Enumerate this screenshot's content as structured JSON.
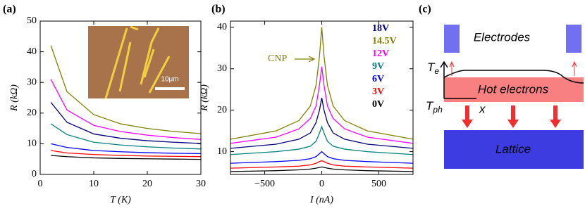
{
  "chart_data": [
    {
      "type": "line",
      "panel_label": "(a)",
      "xlabel": "T (K)",
      "ylabel": "R (kΩ)",
      "xlim": [
        0,
        30
      ],
      "ylim": [
        0,
        50
      ],
      "xticks": [
        0,
        10,
        20,
        30
      ],
      "yticks": [
        0,
        10,
        20,
        30,
        40,
        50
      ],
      "inset_scale_label": "10μm",
      "x": [
        2,
        5,
        10,
        15,
        20,
        25,
        30
      ],
      "series": [
        {
          "color": "#808000",
          "values": [
            42,
            27,
            19.5,
            16.5,
            15,
            14,
            13.3
          ]
        },
        {
          "color": "#ff00ff",
          "values": [
            31,
            21,
            16,
            14,
            12.8,
            12,
            11.4
          ]
        },
        {
          "color": "#00007f",
          "values": [
            23.5,
            17,
            13.2,
            11.8,
            11,
            10.5,
            10.1
          ]
        },
        {
          "color": "#008080",
          "values": [
            16.5,
            13,
            10.5,
            9.6,
            9,
            8.6,
            8.3
          ]
        },
        {
          "color": "#0000ff",
          "values": [
            10,
            8.8,
            7.8,
            7.4,
            7.1,
            6.9,
            6.8
          ]
        },
        {
          "color": "#ff0000",
          "values": [
            7.8,
            7,
            6.5,
            6.2,
            6,
            5.9,
            5.8
          ]
        },
        {
          "color": "#000000",
          "values": [
            6.2,
            5.8,
            5.4,
            5.2,
            5.1,
            5,
            4.9
          ]
        }
      ]
    },
    {
      "type": "line",
      "panel_label": "(b)",
      "xlabel": "I (nA)",
      "ylabel": "R (kΩ)",
      "xlim": [
        -800,
        800
      ],
      "ylim": [
        4.5,
        41.5
      ],
      "xticks": [
        {
          "value": -500,
          "label": "−500"
        },
        0,
        500
      ],
      "yticks": [
        10,
        20,
        30,
        40
      ],
      "annotation": "CNP",
      "x": [
        -800,
        -400,
        -200,
        -100,
        -50,
        -20,
        0,
        20,
        50,
        100,
        200,
        400,
        800
      ],
      "series": [
        {
          "name": "18V",
          "color": "#00007f",
          "values": [
            10.8,
            11.8,
            13,
            14.5,
            17,
            20,
            23,
            20,
            17,
            14.5,
            13,
            11.8,
            10.8
          ]
        },
        {
          "name": "14.5V",
          "color": "#808000",
          "values": [
            13,
            15,
            17.5,
            21,
            26,
            33,
            40,
            33,
            26,
            21,
            17.5,
            15,
            13
          ]
        },
        {
          "name": "12V",
          "color": "#ff00ff",
          "values": [
            12,
            13.5,
            15.5,
            18,
            21,
            26,
            30.5,
            26,
            21,
            18,
            15.5,
            13.5,
            12
          ]
        },
        {
          "name": "9V",
          "color": "#008080",
          "values": [
            9.3,
            10,
            10.6,
            11.3,
            12.5,
            14.5,
            16,
            14.5,
            12.5,
            11.3,
            10.6,
            10,
            9.3
          ]
        },
        {
          "name": "6V",
          "color": "#0000ff",
          "values": [
            7.2,
            7.6,
            7.9,
            8.3,
            8.8,
            9.5,
            10,
            9.5,
            8.8,
            8.3,
            7.9,
            7.6,
            7.2
          ]
        },
        {
          "name": "3V",
          "color": "#ff0000",
          "values": [
            6.0,
            6.3,
            6.5,
            6.8,
            7.2,
            7.6,
            7.8,
            7.6,
            7.2,
            6.8,
            6.5,
            6.3,
            6.0
          ]
        },
        {
          "name": "0V",
          "color": "#000000",
          "values": [
            5.2,
            5.4,
            5.6,
            5.8,
            6,
            6.2,
            6.3,
            6.2,
            6,
            5.8,
            5.6,
            5.4,
            5.2
          ]
        }
      ]
    }
  ],
  "diagram": {
    "panel_label": "(c)",
    "electrodes": "Electrodes",
    "hot_electrons": "Hot electrons",
    "lattice": "Lattice",
    "te": {
      "symbol": "T",
      "subscript": "e"
    },
    "tph": {
      "symbol": "T",
      "subscript": "ph"
    },
    "x_axis": "x"
  }
}
